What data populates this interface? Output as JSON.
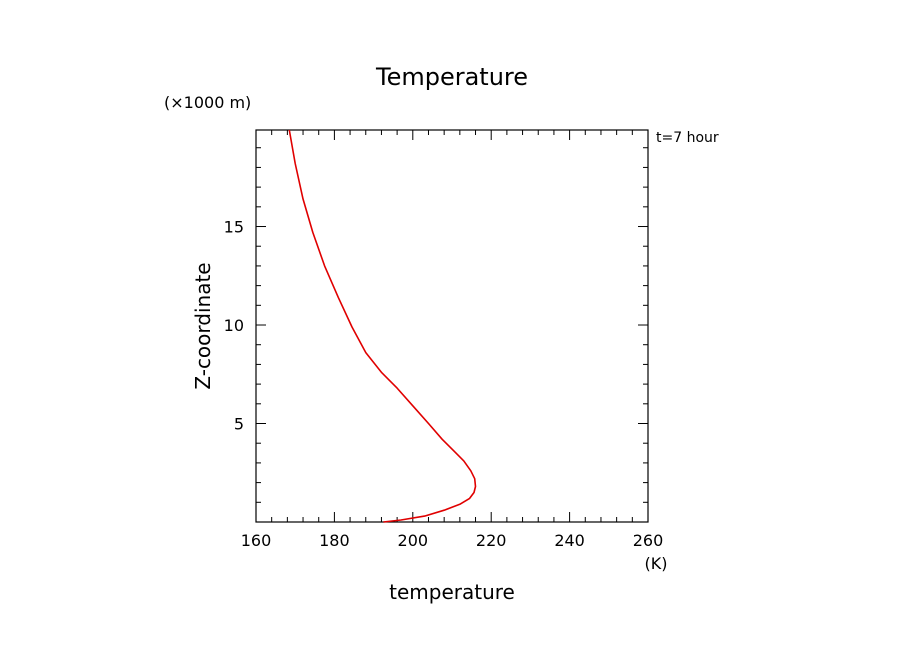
{
  "chart_data": {
    "type": "line",
    "title": "Temperature",
    "xlabel": "temperature",
    "xunit": "(K)",
    "ylabel": "Z-coordinate",
    "yunit": "(×1000 m)",
    "annotation": "t=7 hour",
    "xlim": [
      160,
      260
    ],
    "ylim": [
      0,
      19.9
    ],
    "xticks": [
      160,
      180,
      200,
      220,
      240,
      260
    ],
    "yticks": [
      5,
      10,
      15
    ],
    "grid": false,
    "line_color": "#e00000",
    "series": [
      {
        "x": [
          192.5,
          197.0,
          203.0,
          208.0,
          212.0,
          214.5,
          215.6,
          216.0,
          215.8,
          214.8,
          213.0,
          210.5,
          207.5,
          204.0,
          200.0,
          196.0,
          192.0,
          188.0,
          184.5,
          181.0,
          177.5,
          174.5,
          172.0,
          170.0,
          168.5
        ],
        "y": [
          0.0,
          0.1,
          0.3,
          0.6,
          0.9,
          1.2,
          1.5,
          1.8,
          2.2,
          2.6,
          3.1,
          3.6,
          4.2,
          5.0,
          5.9,
          6.8,
          7.6,
          8.6,
          9.9,
          11.4,
          13.0,
          14.7,
          16.4,
          18.2,
          19.9
        ]
      }
    ]
  }
}
